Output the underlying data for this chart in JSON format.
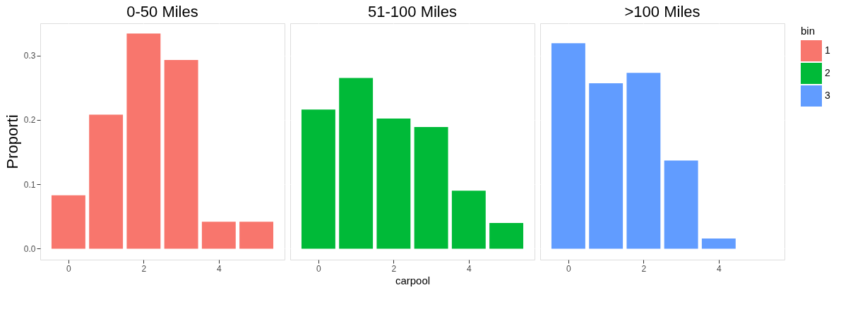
{
  "chart_data": [
    {
      "type": "bar",
      "title": "0-50 Miles",
      "ylabel": "Proporti",
      "x": [
        0,
        1,
        2,
        3,
        4,
        5
      ],
      "series": [
        {
          "name": "1",
          "color": "#f8766d",
          "values": [
            0.083,
            0.208,
            0.334,
            0.293,
            0.042,
            0.042
          ]
        }
      ],
      "xlim": [
        -0.75,
        5.75
      ],
      "xticks": [
        0,
        2,
        4
      ],
      "ylim": [
        -0.017,
        0.35
      ],
      "yticks": [
        {
          "value": 0,
          "label": "0.0"
        },
        0.1,
        0.2,
        0.3
      ],
      "grid": true
    },
    {
      "type": "bar",
      "title": "51-100 Miles",
      "xlabel": "carpool",
      "x": [
        0,
        1,
        2,
        3,
        4,
        5
      ],
      "series": [
        {
          "name": "2",
          "color": "#00ba38",
          "values": [
            0.216,
            0.265,
            0.202,
            0.189,
            0.09,
            0.04
          ]
        }
      ],
      "xlim": [
        -0.75,
        5.75
      ],
      "xticks": [
        0,
        2,
        4
      ],
      "ylim": [
        -0.017,
        0.35
      ],
      "yticks": [
        0.0,
        0.1,
        0.2,
        0.3
      ],
      "grid": true,
      "tick_labels": "x"
    },
    {
      "type": "bar",
      "title": ">100 Miles",
      "legend_title": "bin",
      "legend": "right",
      "x": [
        0,
        1,
        2,
        3,
        4
      ],
      "series": [
        {
          "name": "3",
          "color": "#619cff",
          "values": [
            0.319,
            0.257,
            0.273,
            0.137,
            0.016
          ]
        }
      ],
      "xlim": [
        -0.75,
        5.75
      ],
      "xticks": [
        0,
        2,
        4
      ],
      "ylim": [
        -0.017,
        0.35
      ],
      "yticks": [
        0.0,
        0.1,
        0.2,
        0.3
      ],
      "grid": true,
      "tick_labels": "x"
    }
  ]
}
